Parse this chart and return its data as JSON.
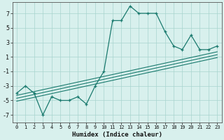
{
  "x": [
    0,
    1,
    2,
    3,
    4,
    5,
    6,
    7,
    8,
    9,
    10,
    11,
    12,
    13,
    14,
    15,
    16,
    17,
    18,
    19,
    20,
    21,
    22,
    23
  ],
  "y_main": [
    -4,
    -3,
    -4,
    -7,
    -4.5,
    -5,
    -5,
    -4.5,
    -5.5,
    -3,
    -1,
    6,
    6,
    8,
    7,
    7,
    7,
    4.5,
    2.5,
    2,
    4,
    2,
    2,
    2.5
  ],
  "reg_lines": [
    [
      -4.7,
      1.3
    ],
    [
      -4.3,
      1.7
    ],
    [
      -5.1,
      0.9
    ]
  ],
  "xlabel": "Humidex (Indice chaleur)",
  "ylim": [
    -8,
    8.5
  ],
  "xlim": [
    -0.5,
    23.5
  ],
  "yticks": [
    -7,
    -5,
    -3,
    -1,
    1,
    3,
    5,
    7
  ],
  "xticks": [
    0,
    1,
    2,
    3,
    4,
    5,
    6,
    7,
    8,
    9,
    10,
    11,
    12,
    13,
    14,
    15,
    16,
    17,
    18,
    19,
    20,
    21,
    22,
    23
  ],
  "line_color": "#1a7a6e",
  "bg_color": "#d8f0ed",
  "grid_color": "#a8d4ce"
}
